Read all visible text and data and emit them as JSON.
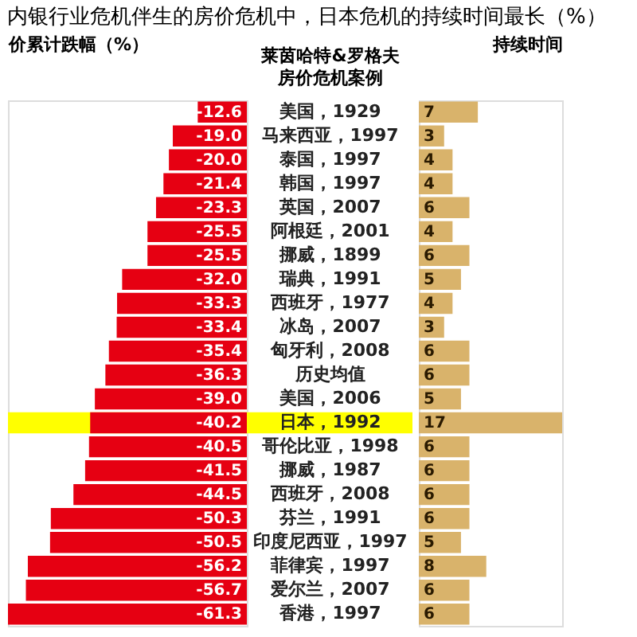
{
  "chart_data": [
    {
      "type": "bar",
      "orientation": "horizontal",
      "title": "内银行业危机伴生的房价危机中，日本危机的持续时间最长（%）",
      "xlabel": "价累计跌幅（%）",
      "ylabel": [
        "莱茵哈特&罗格夫",
        "房价危机案例"
      ],
      "categories": [
        "美国，1929",
        "马来西亚，1997",
        "泰国，1997",
        "韩国，1997",
        "英国，2007",
        "阿根廷，2001",
        "挪威，1899",
        "瑞典，1991",
        "西班牙，1977",
        "冰岛，2007",
        "匈牙利，2008",
        "历史均值",
        "美国，2006",
        "日本，1992",
        "哥伦比亚，1998",
        "挪威，1987",
        "西班牙，2008",
        "芬兰，1991",
        "印度尼西亚，1997",
        "菲律宾，1997",
        "爱尔兰，2007",
        "香港，1997"
      ],
      "values": [
        -12.6,
        -19.0,
        -20.0,
        -21.4,
        -23.3,
        -25.5,
        -25.5,
        -32.0,
        -33.3,
        -33.4,
        -35.4,
        -36.3,
        -39.0,
        -40.2,
        -40.5,
        -41.5,
        -44.5,
        -50.3,
        -50.5,
        -56.2,
        -56.7,
        -61.3
      ],
      "color": "#e60012",
      "value_labels": [
        "-12.6",
        "-19.0",
        "-20.0",
        "-21.4",
        "-23.3",
        "-25.5",
        "-25.5",
        "-32.0",
        "-33.3",
        "-33.4",
        "-35.4",
        "-36.3",
        "-39.0",
        "-40.2",
        "-40.5",
        "-41.5",
        "-44.5",
        "-50.3",
        "-50.5",
        "-56.2",
        "-56.7",
        "-61.3"
      ],
      "tick_labels": "y",
      "grid": false,
      "bands": [
        {
          "axis": "y",
          "from": "日本，1992",
          "to": "日本，1992",
          "color": "#ffff00"
        }
      ]
    },
    {
      "type": "bar",
      "orientation": "horizontal",
      "xlabel": "持续时间",
      "categories": [
        "美国，1929",
        "马来西亚，1997",
        "泰国，1997",
        "韩国，1997",
        "英国，2007",
        "阿根廷，2001",
        "挪威，1899",
        "瑞典，1991",
        "西班牙，1977",
        "冰岛，2007",
        "匈牙利，2008",
        "历史均值",
        "美国，2006",
        "日本，1992",
        "哥伦比亚，1998",
        "挪威，1987",
        "西班牙，2008",
        "芬兰，1991",
        "印度尼西亚，1997",
        "菲律宾，1997",
        "爱尔兰，2007",
        "香港，1997"
      ],
      "values": [
        7,
        3,
        4,
        4,
        6,
        4,
        6,
        5,
        4,
        3,
        6,
        6,
        5,
        17,
        6,
        6,
        6,
        6,
        5,
        8,
        6,
        6
      ],
      "color": "#d9b36b",
      "data_labels": true,
      "tick_labels": false,
      "grid": false
    }
  ]
}
